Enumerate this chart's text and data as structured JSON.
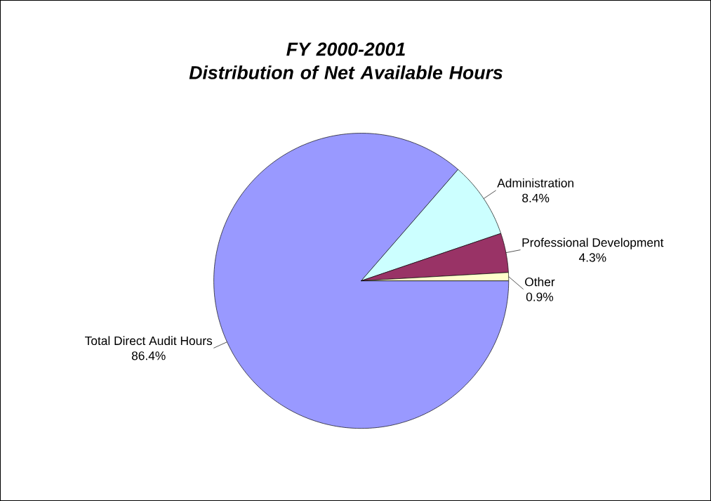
{
  "chart_data": {
    "type": "pie",
    "title": "FY 2000-2001\nDistribution of Net Available Hours",
    "categories": [
      "Total Direct Audit Hours",
      "Administration",
      "Professional Development",
      "Other"
    ],
    "values": [
      86.4,
      8.4,
      4.3,
      0.9
    ],
    "value_labels": [
      "86.4%",
      "8.4%",
      "4.3%",
      "0.9%"
    ],
    "colors": [
      "#9999ff",
      "#ccffff",
      "#993366",
      "#ffffcc"
    ]
  }
}
